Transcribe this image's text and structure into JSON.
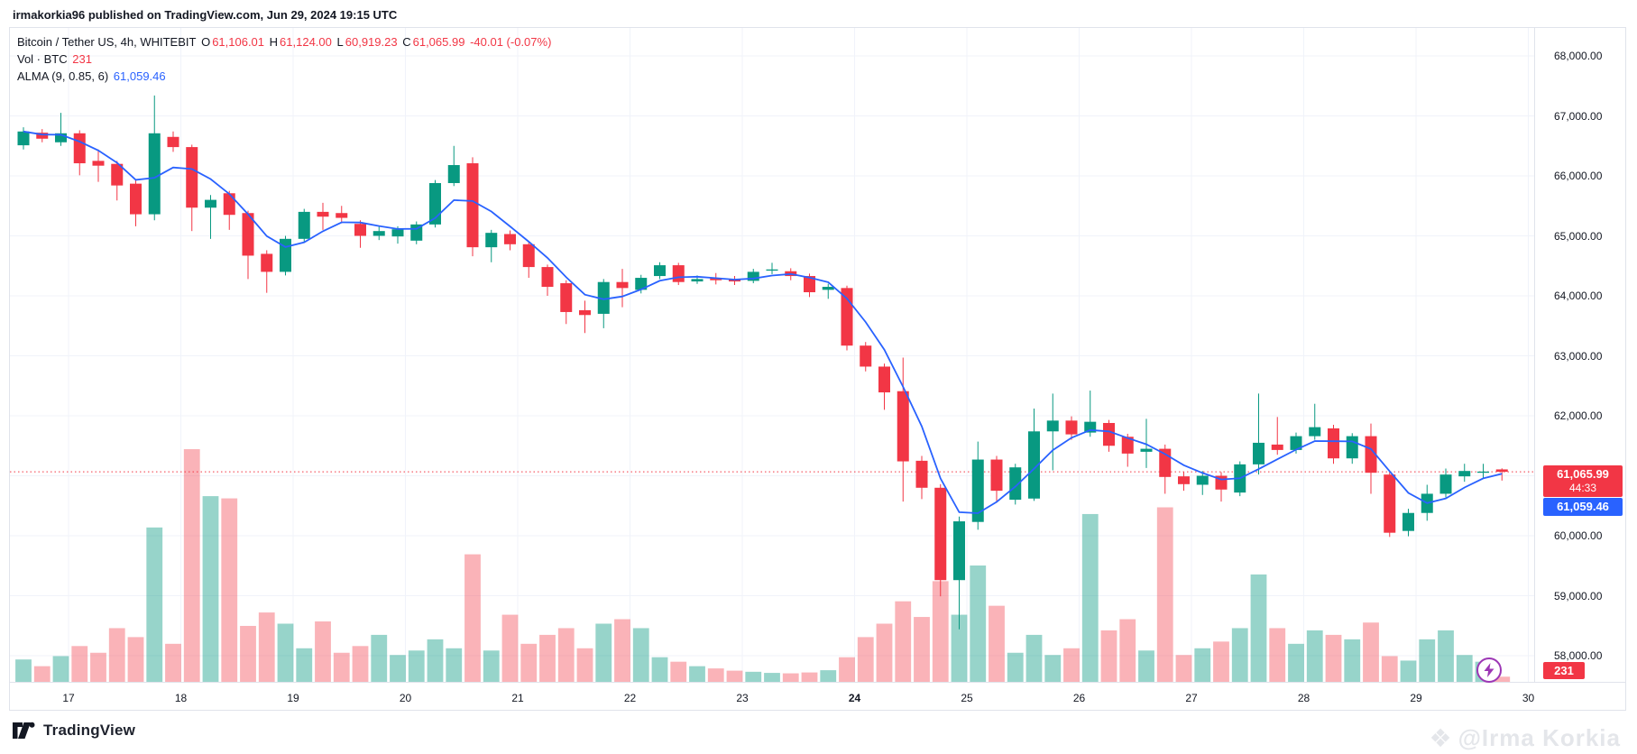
{
  "header": {
    "published_line": "irmakorkia96 published on TradingView.com, Jun 29, 2024 19:15 UTC"
  },
  "legend": {
    "symbol_line": "Bitcoin / Tether US, 4h, WHITEBIT",
    "ohlc": {
      "o_label": "O",
      "o": "61,106.01",
      "h_label": "H",
      "h": "61,124.00",
      "l_label": "L",
      "l": "60,919.23",
      "c_label": "C",
      "c": "61,065.99",
      "change": "-40.01 (-0.07%)"
    },
    "vol_label": "Vol · BTC",
    "vol_value": "231",
    "alma_label": "ALMA (9, 0.85, 6)",
    "alma_value": "61,059.46"
  },
  "price_scale": {
    "labels": [
      {
        "text": "68,000.00",
        "price": 68000
      },
      {
        "text": "67,000.00",
        "price": 67000
      },
      {
        "text": "66,000.00",
        "price": 66000
      },
      {
        "text": "65,000.00",
        "price": 65000
      },
      {
        "text": "64,000.00",
        "price": 64000
      },
      {
        "text": "63,000.00",
        "price": 63000
      },
      {
        "text": "62,000.00",
        "price": 62000
      },
      {
        "text": "60,000.00",
        "price": 60000
      },
      {
        "text": "59,000.00",
        "price": 59000
      },
      {
        "text": "58,000.00",
        "price": 58000
      }
    ],
    "price_marker": {
      "price": "61,065.99",
      "countdown": "44:33"
    },
    "alma_marker": "61,059.46",
    "vol_marker": "231"
  },
  "time_scale": {
    "labels": [
      {
        "text": "17",
        "day": 0,
        "bold": false
      },
      {
        "text": "18",
        "day": 1,
        "bold": false
      },
      {
        "text": "19",
        "day": 2,
        "bold": false
      },
      {
        "text": "20",
        "day": 3,
        "bold": false
      },
      {
        "text": "21",
        "day": 4,
        "bold": false
      },
      {
        "text": "22",
        "day": 5,
        "bold": false
      },
      {
        "text": "23",
        "day": 6,
        "bold": false
      },
      {
        "text": "24",
        "day": 7,
        "bold": true
      },
      {
        "text": "25",
        "day": 8,
        "bold": false
      },
      {
        "text": "26",
        "day": 9,
        "bold": false
      },
      {
        "text": "27",
        "day": 10,
        "bold": false
      },
      {
        "text": "28",
        "day": 11,
        "bold": false
      },
      {
        "text": "29",
        "day": 12,
        "bold": false
      },
      {
        "text": "30",
        "day": 13,
        "bold": false
      }
    ]
  },
  "footer": {
    "brand": "TradingView"
  },
  "watermark": {
    "text": "@Irma Korkia"
  },
  "colors": {
    "up": "#089981",
    "down": "#F23645",
    "vol_up": "rgba(8,153,129,0.42)",
    "vol_down": "rgba(242,54,69,0.38)",
    "alma_line": "#2962FF",
    "grid": "#F0F3FA",
    "axis_text": "#131722",
    "price_badge": "#F23645",
    "alma_badge": "#2962FF",
    "boost_purple": "#9C36B5"
  },
  "chart_data": {
    "type": "candlestick",
    "symbol": "Bitcoin / Tether US",
    "exchange": "WHITEBIT",
    "interval": "4h",
    "last": {
      "open": 61106.01,
      "high": 61124.0,
      "low": 60919.23,
      "close": 61065.99,
      "change": -40.01,
      "change_pct": -0.07
    },
    "current_price": 61065.99,
    "alma": {
      "window": 9,
      "offset": 0.85,
      "sigma": 6,
      "value": 61059.46
    },
    "volume_last_btc": 231,
    "y_axis": {
      "min": 57800,
      "max": 68450,
      "gridline_step": 1000,
      "visible_range": [
        58000,
        68000
      ]
    },
    "x_axis": {
      "dates": [
        "Jun 17",
        "Jun 18",
        "Jun 19",
        "Jun 20",
        "Jun 21",
        "Jun 22",
        "Jun 23",
        "Jun 24",
        "Jun 25",
        "Jun 26",
        "Jun 27",
        "Jun 28",
        "Jun 29",
        "Jun 30"
      ]
    },
    "candles": [
      [
        66510,
        66810,
        66440,
        66740,
        1000
      ],
      [
        66720,
        66780,
        66560,
        66620,
        700
      ],
      [
        66560,
        67050,
        66500,
        66710,
        1150
      ],
      [
        66710,
        66760,
        66010,
        66210,
        1600
      ],
      [
        66250,
        66440,
        65900,
        66170,
        1300
      ],
      [
        66200,
        66250,
        65590,
        65840,
        2400
      ],
      [
        65870,
        65930,
        65160,
        65360,
        2000
      ],
      [
        65360,
        67340,
        65260,
        66710,
        6900
      ],
      [
        66650,
        66740,
        66400,
        66480,
        1700
      ],
      [
        66480,
        66520,
        65080,
        65470,
        10400
      ],
      [
        65470,
        65680,
        64950,
        65600,
        8300
      ],
      [
        65710,
        65750,
        65100,
        65350,
        8200
      ],
      [
        65380,
        65420,
        64280,
        64670,
        2500
      ],
      [
        64700,
        64760,
        64050,
        64400,
        3100
      ],
      [
        64400,
        65000,
        64340,
        64950,
        2600
      ],
      [
        64950,
        65450,
        64900,
        65400,
        1500
      ],
      [
        65400,
        65550,
        65100,
        65320,
        2700
      ],
      [
        65380,
        65500,
        65210,
        65300,
        1300
      ],
      [
        65200,
        65260,
        64800,
        65000,
        1600
      ],
      [
        65000,
        65150,
        64930,
        65080,
        2100
      ],
      [
        64990,
        65160,
        64870,
        65110,
        1200
      ],
      [
        64920,
        65240,
        64860,
        65190,
        1400
      ],
      [
        65190,
        65930,
        65140,
        65880,
        1900
      ],
      [
        65880,
        66500,
        65830,
        66180,
        1500
      ],
      [
        66210,
        66310,
        64660,
        64810,
        5700
      ],
      [
        64810,
        65100,
        64560,
        65050,
        1400
      ],
      [
        65030,
        65090,
        64760,
        64860,
        3000
      ],
      [
        64860,
        64900,
        64300,
        64480,
        1700
      ],
      [
        64480,
        64520,
        64000,
        64150,
        2100
      ],
      [
        64210,
        64260,
        63530,
        63730,
        2400
      ],
      [
        63760,
        63920,
        63380,
        63680,
        1500
      ],
      [
        63700,
        64280,
        63460,
        64230,
        2600
      ],
      [
        64230,
        64450,
        63810,
        64130,
        2800
      ],
      [
        64100,
        64350,
        64040,
        64300,
        2400
      ],
      [
        64330,
        64560,
        64280,
        64510,
        1100
      ],
      [
        64510,
        64550,
        64180,
        64230,
        900
      ],
      [
        64240,
        64340,
        64200,
        64280,
        700
      ],
      [
        64300,
        64380,
        64190,
        64260,
        600
      ],
      [
        64280,
        64330,
        64180,
        64240,
        500
      ],
      [
        64250,
        64450,
        64210,
        64400,
        450
      ],
      [
        64420,
        64550,
        64360,
        64440,
        400
      ],
      [
        64410,
        64460,
        64260,
        64330,
        380
      ],
      [
        64330,
        64370,
        63980,
        64060,
        420
      ],
      [
        64100,
        64200,
        63950,
        64150,
        520
      ],
      [
        64130,
        64170,
        63090,
        63170,
        1100
      ],
      [
        63170,
        63230,
        62740,
        62820,
        2000
      ],
      [
        62820,
        62870,
        62100,
        62390,
        2600
      ],
      [
        62410,
        62970,
        60570,
        61240,
        3600
      ],
      [
        61250,
        61330,
        60610,
        60800,
        2900
      ],
      [
        60800,
        60860,
        58990,
        59260,
        4500
      ],
      [
        59260,
        60320,
        58440,
        60240,
        3000
      ],
      [
        60230,
        61570,
        60100,
        61270,
        5200
      ],
      [
        61270,
        61330,
        60550,
        60750,
        3400
      ],
      [
        60600,
        61200,
        60520,
        61140,
        1300
      ],
      [
        60620,
        62120,
        60580,
        61740,
        2100
      ],
      [
        61740,
        62370,
        61090,
        61920,
        1200
      ],
      [
        61920,
        61990,
        61600,
        61690,
        1500
      ],
      [
        61720,
        62420,
        61650,
        61900,
        7500
      ],
      [
        61880,
        61930,
        61400,
        61500,
        2300
      ],
      [
        61650,
        61700,
        61150,
        61370,
        2800
      ],
      [
        61400,
        61950,
        61130,
        61450,
        1400
      ],
      [
        61450,
        61520,
        60700,
        60980,
        7800
      ],
      [
        60990,
        61060,
        60750,
        60860,
        1200
      ],
      [
        60850,
        61080,
        60680,
        61000,
        1500
      ],
      [
        61000,
        61060,
        60570,
        60770,
        1800
      ],
      [
        60720,
        61240,
        60660,
        61190,
        2400
      ],
      [
        61190,
        62370,
        61020,
        61550,
        4800
      ],
      [
        61520,
        61980,
        61350,
        61430,
        2400
      ],
      [
        61430,
        61720,
        61370,
        61660,
        1700
      ],
      [
        61660,
        62200,
        61600,
        61810,
        2300
      ],
      [
        61790,
        61850,
        61200,
        61290,
        2100
      ],
      [
        61290,
        61710,
        61200,
        61660,
        1900
      ],
      [
        61660,
        61870,
        60700,
        61050,
        2650
      ],
      [
        61020,
        61080,
        59980,
        60050,
        1150
      ],
      [
        60080,
        60450,
        59990,
        60380,
        950
      ],
      [
        60380,
        60850,
        60250,
        60700,
        1900
      ],
      [
        60700,
        61120,
        60640,
        61020,
        2300
      ],
      [
        60990,
        61200,
        60900,
        61080,
        1200
      ],
      [
        61050,
        61200,
        60950,
        61070,
        900
      ],
      [
        61106.01,
        61124.0,
        60919.23,
        61065.99,
        231
      ]
    ]
  }
}
